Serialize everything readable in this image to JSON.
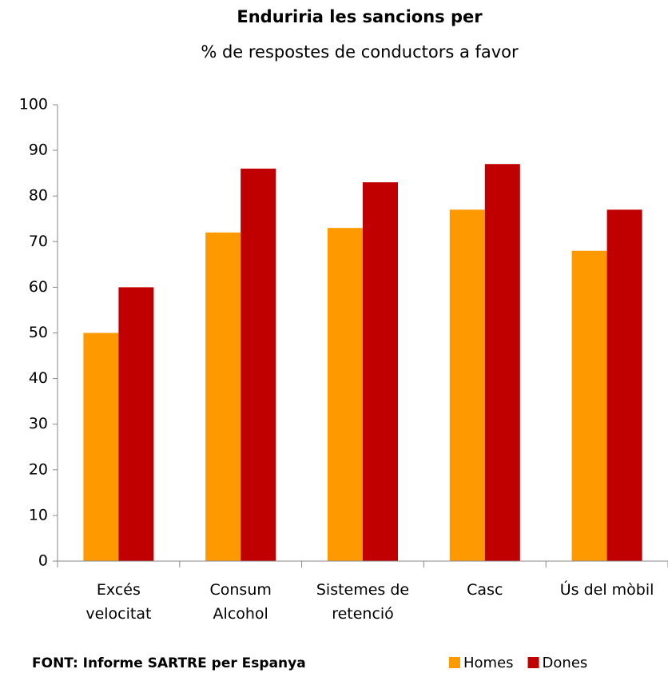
{
  "chart_data": {
    "type": "bar",
    "title": "Enduriria les sancions per",
    "subtitle": "% de respostes de conductors a favor",
    "categories": [
      "Excés\nvelocitat",
      "Consum\nAlcohol",
      "Sistemes de\nretenció",
      "Casc",
      "Ús del mòbil"
    ],
    "series": [
      {
        "name": "Homes",
        "color": "#ff9900",
        "values": [
          50,
          72,
          73,
          77,
          68
        ]
      },
      {
        "name": "Dones",
        "color": "#c00000",
        "values": [
          60,
          86,
          83,
          87,
          77
        ]
      }
    ],
    "ylim": [
      0,
      100
    ],
    "yticks": [
      0,
      10,
      20,
      30,
      40,
      50,
      60,
      70,
      80,
      90,
      100
    ],
    "grid": false,
    "legend": "bottom-right",
    "source": "FONT: Informe SARTRE per Espanya"
  }
}
